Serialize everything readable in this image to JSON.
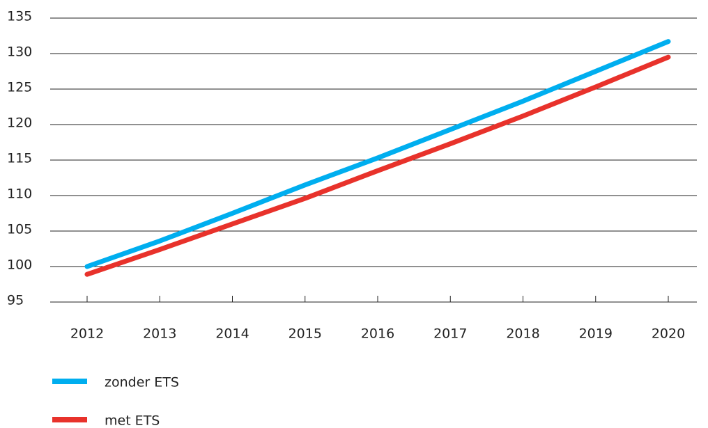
{
  "chart_data": {
    "type": "line",
    "categories": [
      "2012",
      "2013",
      "2014",
      "2015",
      "2016",
      "2017",
      "2018",
      "2019",
      "2020"
    ],
    "series": [
      {
        "name": "zonder ETS",
        "color": "#00aeef",
        "values": [
          100,
          103.6,
          107.5,
          111.5,
          115.3,
          119.3,
          123.3,
          127.5,
          131.7
        ]
      },
      {
        "name": "met ETS",
        "color": "#e8322b",
        "values": [
          98.9,
          102.4,
          106,
          109.6,
          113.5,
          117.3,
          121.2,
          125.3,
          129.5
        ]
      }
    ],
    "ylim": [
      95,
      135
    ],
    "yticks": [
      95,
      100,
      105,
      110,
      115,
      120,
      125,
      130,
      135
    ],
    "grid": true,
    "legend": "bottom"
  }
}
